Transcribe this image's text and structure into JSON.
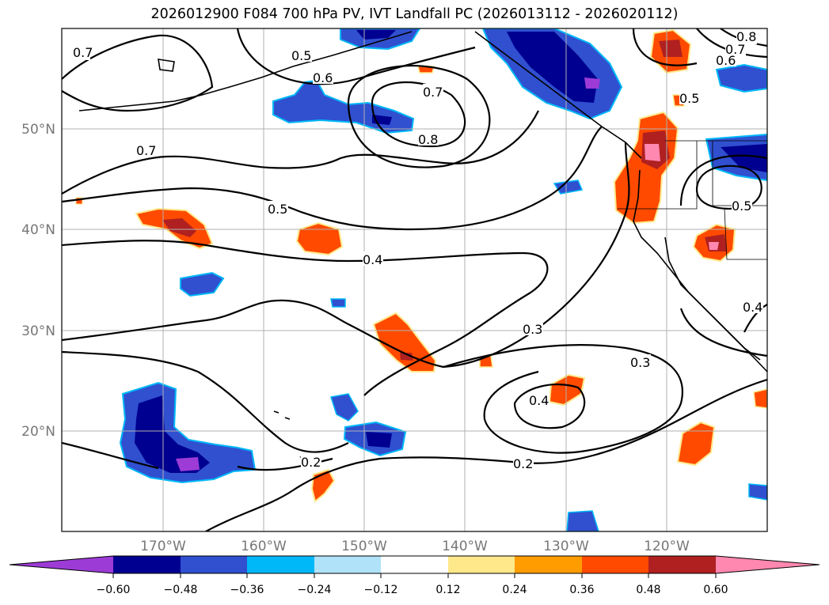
{
  "title": "2026012900 F084 700 hPa PV, IVT Landfall PC (2026013112 - 2026020112)",
  "lat_labels": [
    "50°N",
    "40°N",
    "30°N",
    "20°N"
  ],
  "lon_labels": [
    "170°W",
    "160°W",
    "150°W",
    "140°W",
    "130°W",
    "120°W"
  ],
  "contour_labels": [
    "0.7",
    "0.5",
    "0.6",
    "0.7",
    "0.8",
    "0.7",
    "0.5",
    "0.4",
    "0.3",
    "0.3",
    "0.4",
    "0.2",
    "0.2",
    "0.5",
    "0.6",
    "0.7",
    "0.8",
    "0.4",
    "0.5"
  ],
  "colorbar": {
    "ticks": [
      "−0.60",
      "−0.48",
      "−0.36",
      "−0.24",
      "−0.12",
      "0.12",
      "0.24",
      "0.36",
      "0.48",
      "0.60"
    ],
    "colors": [
      "#9c3bd6",
      "#000090",
      "#3050d0",
      "#00b8f8",
      "#b0e2fa",
      "#ffffff",
      "#ffe88a",
      "#ff9c00",
      "#ff4a00",
      "#b02020",
      "#ff88b0"
    ]
  }
}
